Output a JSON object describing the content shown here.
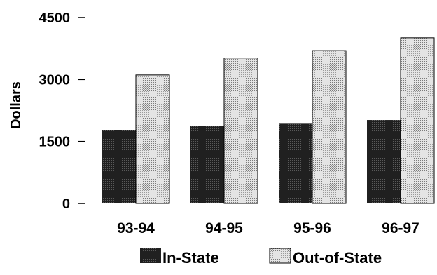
{
  "chart_data": {
    "type": "bar",
    "title": "",
    "xlabel": "",
    "ylabel": "Dollars",
    "ylim": [
      0,
      4500
    ],
    "yticks": [
      0,
      1500,
      3000,
      4500
    ],
    "ytick_labels": [
      "0",
      "1500",
      "3000",
      "4500"
    ],
    "categories": [
      "93-94",
      "94-95",
      "95-96",
      "96-97"
    ],
    "series": [
      {
        "name": "In-State",
        "values": [
          1770,
          1870,
          1930,
          2020
        ],
        "color": "#1a1a1a"
      },
      {
        "name": "Out-of-State",
        "values": [
          3110,
          3520,
          3700,
          4010
        ],
        "color": "#cfcfcf"
      }
    ],
    "legend_position": "bottom",
    "grid": false
  }
}
